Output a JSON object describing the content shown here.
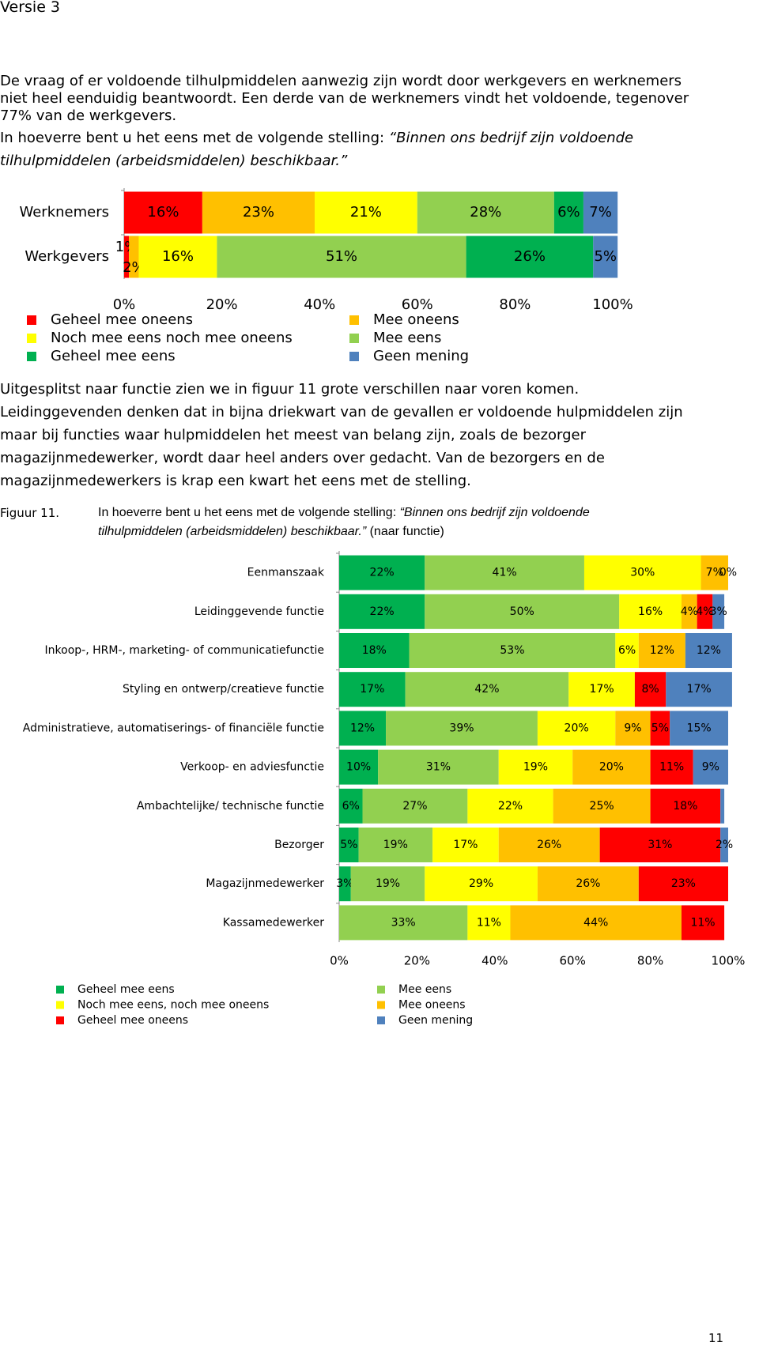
{
  "header": "Versie 3",
  "intro_lines": [
    "De vraag of er voldoende tilhulpmiddelen aanwezig zijn wordt door werkgevers en werknemers",
    "niet heel eenduidig beantwoordt. Een derde van de werknemers vindt het voldoende, tegenover",
    "77% van de werkgevers."
  ],
  "question": {
    "text": "In hoeverre bent u het eens met de volgende stelling: ",
    "quote_lines": [
      "“Binnen ons bedrijf zijn voldoende",
      "tilhulpmiddelen (arbeidsmiddelen) beschikbaar.”"
    ]
  },
  "paragraph_lines": [
    "Uitgesplitst naar functie zien we in figuur 11 grote verschillen naar voren komen.",
    "Leidinggevenden denken dat in bijna driekwart van de gevallen er voldoende hulpmiddelen zijn",
    "maar bij functies waar hulpmiddelen het meest van belang zijn, zoals de bezorger",
    "magazijnmedewerker, wordt daar heel anders over gedacht. Van de bezorgers en de",
    "magazijnmedewerkers is krap een kwart het eens met de stelling."
  ],
  "figure": {
    "label": "Figuur 11.",
    "text": "In hoeverre bent u het eens met de volgende stelling: ",
    "quote_lines": [
      "“Binnen ons bedrijf zijn voldoende",
      "tilhulpmiddelen (arbeidsmiddelen) beschikbaar.”"
    ],
    "suffix": " (naar functie)"
  },
  "page_number": "11",
  "chart_data": [
    {
      "type": "stacked-hbar",
      "categories": [
        "Werknemers",
        "Werkgevers"
      ],
      "xlim": [
        0,
        100
      ],
      "xticks": [
        {
          "value": 0,
          "label": "0%"
        },
        {
          "value": 20,
          "label": "20%"
        },
        {
          "value": 40,
          "label": "40%"
        },
        {
          "value": 60,
          "label": "60%"
        },
        {
          "value": 80,
          "label": "80%"
        },
        {
          "value": 100,
          "label": "100%"
        }
      ],
      "series": [
        {
          "name": "Geheel mee oneens",
          "color": "#ff0000",
          "values": [
            16,
            1
          ],
          "value_labels": [
            "16%",
            "1%"
          ]
        },
        {
          "name": "Mee oneens",
          "color": "#ffc000",
          "values": [
            23,
            2
          ],
          "value_labels": [
            "23%",
            "2%"
          ]
        },
        {
          "name": "Noch mee eens noch mee oneens",
          "color": "#ffff00",
          "values": [
            21,
            16
          ],
          "value_labels": [
            "21%",
            "16%"
          ]
        },
        {
          "name": "Mee eens",
          "color": "#92d050",
          "values": [
            28,
            51
          ],
          "value_labels": [
            "28%",
            "51%"
          ]
        },
        {
          "name": "Geheel mee eens",
          "color": "#00b050",
          "values": [
            6,
            26
          ],
          "value_labels": [
            "6%",
            "26%"
          ]
        },
        {
          "name": "Geen mening",
          "color": "#4f81bd",
          "values": [
            7,
            5
          ],
          "value_labels": [
            "7%",
            "5%"
          ]
        }
      ]
    },
    {
      "type": "stacked-hbar",
      "categories": [
        "Eenmanszaak",
        "Leidinggevende functie",
        "Inkoop-, HRM-, marketing- of communicatiefunctie",
        "Styling en ontwerp/creatieve functie",
        "Administratieve, automatiserings- of financiële functie",
        "Verkoop- en adviesfunctie",
        "Ambachtelijke/ technische functie",
        "Bezorger",
        "Magazijnmedewerker",
        "Kassamedewerker"
      ],
      "xlim": [
        0,
        100
      ],
      "xticks": [
        {
          "value": 0,
          "label": "0%"
        },
        {
          "value": 20,
          "label": "20%"
        },
        {
          "value": 40,
          "label": "40%"
        },
        {
          "value": 60,
          "label": "60%"
        },
        {
          "value": 80,
          "label": "80%"
        },
        {
          "value": 100,
          "label": "100%"
        }
      ],
      "series": [
        {
          "name": "Geheel mee eens",
          "color": "#00b050",
          "values": [
            22,
            22,
            18,
            17,
            12,
            10,
            6,
            5,
            3,
            null
          ],
          "value_labels": [
            "22%",
            "22%",
            "18%",
            "17%",
            "12%",
            "10%",
            "6%",
            "5%",
            "3%",
            null
          ]
        },
        {
          "name": "Mee eens",
          "color": "#92d050",
          "values": [
            41,
            50,
            53,
            42,
            39,
            31,
            27,
            19,
            19,
            33
          ],
          "value_labels": [
            "41%",
            "50%",
            "53%",
            "42%",
            "39%",
            "31%",
            "27%",
            "19%",
            "19%",
            "33%"
          ]
        },
        {
          "name": "Noch mee eens, noch mee oneens",
          "color": "#ffff00",
          "values": [
            30,
            16,
            6,
            17,
            20,
            19,
            22,
            17,
            29,
            11
          ],
          "value_labels": [
            "30%",
            "16%",
            "6%",
            "17%",
            "20%",
            "19%",
            "22%",
            "17%",
            "29%",
            "11%"
          ]
        },
        {
          "name": "Mee oneens",
          "color": "#ffc000",
          "values": [
            7,
            4,
            12,
            null,
            9,
            20,
            25,
            26,
            26,
            44
          ],
          "value_labels": [
            "7%",
            "4%",
            "12%",
            null,
            "9%",
            "20%",
            "25%",
            "26%",
            "26%",
            "44%"
          ]
        },
        {
          "name": "Geheel mee oneens",
          "color": "#ff0000",
          "values": [
            0,
            4,
            null,
            8,
            5,
            11,
            18,
            31,
            23,
            11
          ],
          "value_labels": [
            "0%",
            "4%",
            null,
            "8%",
            "5%",
            "11%",
            "18%",
            "31%",
            "23%",
            "11%"
          ]
        },
        {
          "name": "Geen mening",
          "color": "#4f81bd",
          "values": [
            null,
            3,
            12,
            17,
            15,
            9,
            1,
            2,
            null,
            null
          ],
          "value_labels": [
            null,
            "3%",
            "12%",
            "17%",
            "15%",
            "9%",
            null,
            "2%",
            null,
            null
          ]
        }
      ]
    }
  ]
}
